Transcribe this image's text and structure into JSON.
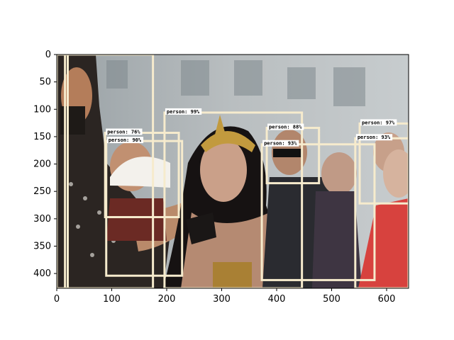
{
  "image": {
    "description_hidden": "",
    "width": 640,
    "height": 427
  },
  "axes": {
    "x_ticks": [
      0,
      100,
      200,
      300,
      400,
      500,
      600
    ],
    "y_ticks": [
      0,
      50,
      100,
      150,
      200,
      250,
      300,
      350,
      400
    ]
  },
  "detections": [
    {
      "label": "",
      "x0": 15,
      "y0": 0,
      "x1": 175,
      "y1": 427
    },
    {
      "label": "",
      "x0": 0,
      "y0": 0,
      "x1": 20,
      "y1": 427
    },
    {
      "label": "person: 76%",
      "x0": 88,
      "y0": 143,
      "x1": 222,
      "y1": 297
    },
    {
      "label": "person: 90%",
      "x0": 90,
      "y0": 158,
      "x1": 228,
      "y1": 404
    },
    {
      "label": "person: 99%",
      "x0": 196,
      "y0": 106,
      "x1": 446,
      "y1": 427
    },
    {
      "label": "person: 88%",
      "x0": 382,
      "y0": 134,
      "x1": 477,
      "y1": 235
    },
    {
      "label": "person: 93%",
      "x0": 373,
      "y0": 164,
      "x1": 578,
      "y1": 412
    },
    {
      "label": "person: 97%",
      "x0": 551,
      "y0": 126,
      "x1": 640,
      "y1": 272
    },
    {
      "label": "person: 93%",
      "x0": 543,
      "y0": 153,
      "x1": 640,
      "y1": 427
    }
  ],
  "colors": {
    "box": "#f6ebcd",
    "label_bg": "#ffffff"
  }
}
